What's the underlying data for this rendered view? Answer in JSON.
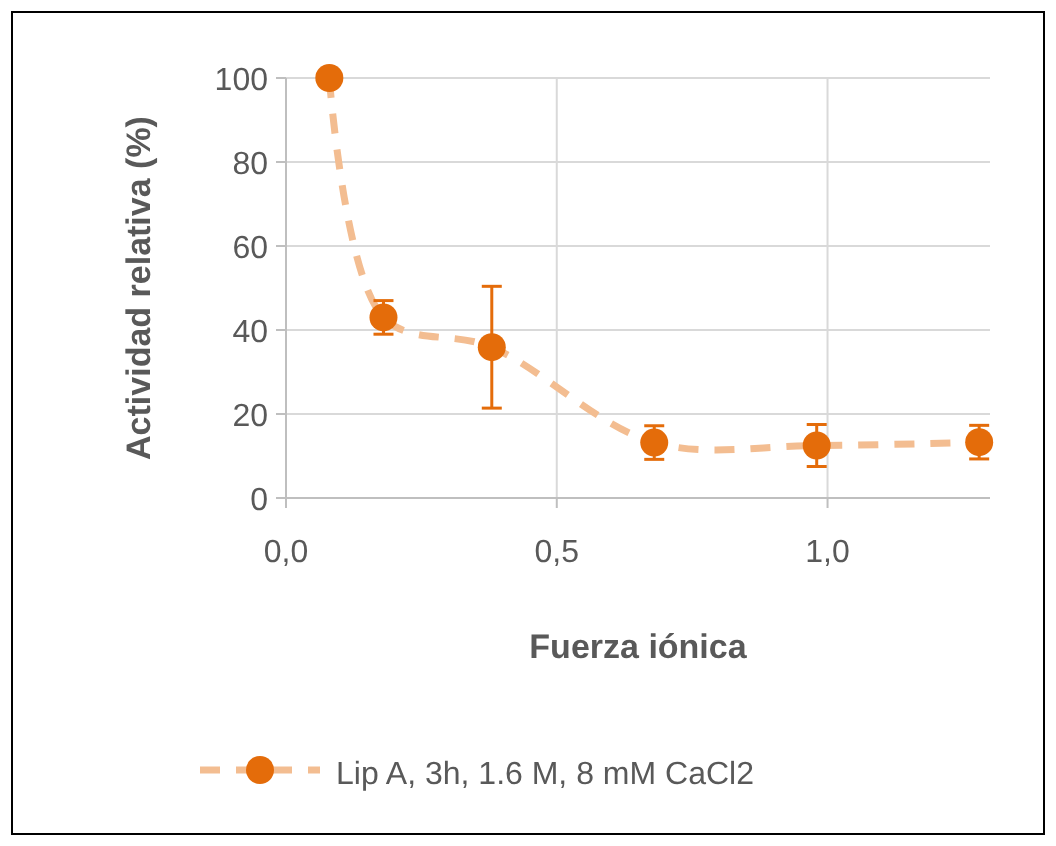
{
  "chart_data": {
    "type": "line",
    "xlabel": "Fuerza iónica",
    "ylabel": "Actividad relativa (%)",
    "x": [
      0.08,
      0.18,
      0.38,
      0.68,
      0.98,
      1.28
    ],
    "series": [
      {
        "name": "Lip A, 3h, 1.6 M, 8 mM CaCl2",
        "color": "#e46c0a",
        "values": [
          100,
          43,
          35.9,
          13.2,
          12.5,
          13.3
        ],
        "errors": [
          null,
          4,
          14.5,
          4,
          5,
          4
        ]
      }
    ],
    "xlim": [
      0,
      1.3
    ],
    "xticks": [
      {
        "value": 0,
        "label": "0,0"
      },
      {
        "value": 0.5,
        "label": "0,5"
      },
      {
        "value": 1,
        "label": "1,0"
      }
    ],
    "ylim": [
      0,
      100
    ],
    "yticks": [
      0,
      20,
      40,
      60,
      80,
      100
    ],
    "grid": true,
    "legend": "bottom",
    "marker": "circle",
    "line_style": "dashed"
  }
}
